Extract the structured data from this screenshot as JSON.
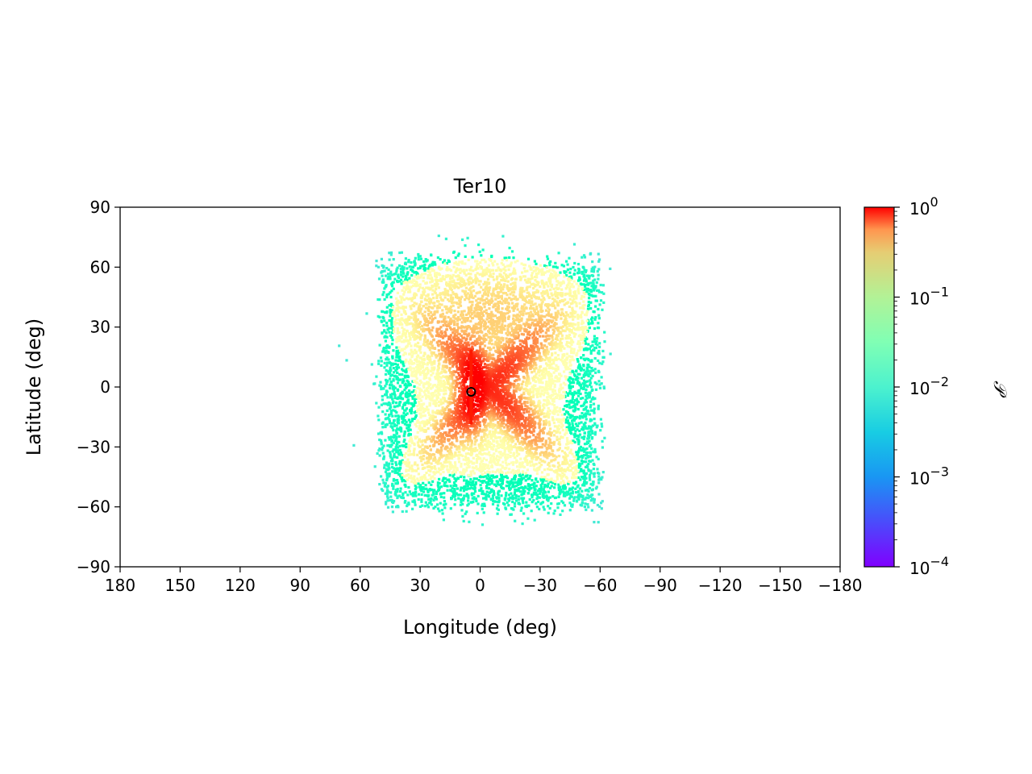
{
  "chart_data": {
    "type": "scatter",
    "title": "Ter10",
    "xlabel": "Longitude (deg)",
    "ylabel": "Latitude (deg)",
    "xlim": [
      180,
      -180
    ],
    "ylim": [
      -90,
      90
    ],
    "x_ticks": [
      180,
      150,
      120,
      90,
      60,
      30,
      0,
      -30,
      -60,
      -90,
      -120,
      -150,
      -180
    ],
    "x_tick_labels": [
      "180",
      "150",
      "120",
      "90",
      "60",
      "30",
      "0",
      "−30",
      "−60",
      "−90",
      "−120",
      "−150",
      "−180"
    ],
    "y_ticks": [
      90,
      60,
      30,
      0,
      -30,
      -60,
      -90
    ],
    "y_tick_labels": [
      "90",
      "60",
      "30",
      "0",
      "−30",
      "−60",
      "−90"
    ],
    "grid": false,
    "colorbar": {
      "label": "𝒫",
      "scale": "log",
      "range": [
        0.0001,
        1
      ],
      "colormap": "rainbow",
      "tick_values": [
        1,
        0.1,
        0.01,
        0.001,
        0.0001
      ],
      "tick_bases": [
        "10",
        "10",
        "10",
        "10",
        "10"
      ],
      "tick_exponents": [
        "0",
        "−1",
        "−2",
        "−3",
        "−4"
      ]
    },
    "distribution": {
      "description": "dense point cloud of probability density",
      "outer_extent": {
        "lon": [
          70,
          -72
        ],
        "lat": [
          -70,
          76
        ]
      },
      "inner_box": {
        "lon": [
          60,
          -60
        ],
        "lat": [
          -60,
          68
        ]
      },
      "core_extent": {
        "lon": [
          22,
          -32
        ],
        "lat": [
          -28,
          22
        ]
      },
      "peak_density": 1.0
    },
    "marker": {
      "lon": 4.5,
      "lat": -2.4,
      "style": "open circle",
      "color": "#000000"
    }
  }
}
